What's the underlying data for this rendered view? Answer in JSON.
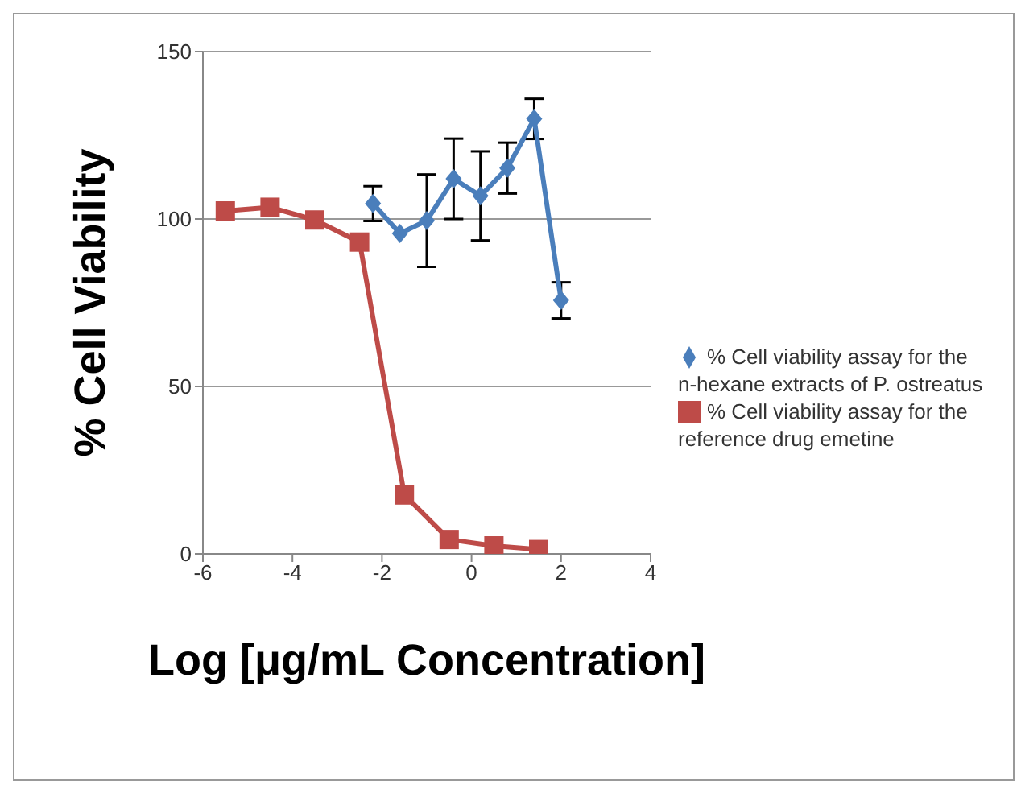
{
  "chart_data": {
    "type": "line",
    "xlabel": "Log [μg/mL Concentration]",
    "ylabel": "% Cell Viability",
    "xlim": [
      -6,
      4
    ],
    "xticks": [
      -6,
      -4,
      -2,
      0,
      2,
      4
    ],
    "ylim": [
      0,
      150
    ],
    "yticks": [
      0,
      50,
      100,
      150
    ],
    "grid": "y",
    "legend": "right",
    "line_style": "solid",
    "series": [
      {
        "name": "% Cell viability assay for the n-hexane extracts of P. ostreatus",
        "color": "#4a7ebb",
        "marker": "diamond",
        "x": [
          -2.2,
          -1.6,
          -1.0,
          -0.4,
          0.2,
          0.8,
          1.4,
          2.0
        ],
        "values": [
          104.6,
          95.7,
          99.5,
          112,
          106.9,
          115.2,
          129.9,
          75.7
        ],
        "errors": [
          5.2,
          null,
          13.8,
          12,
          13.3,
          7.6,
          6,
          5.4
        ]
      },
      {
        "name": "% Cell viability assay for the reference drug emetine",
        "color": "#be4b48",
        "marker": "square",
        "x": [
          -5.5,
          -4.5,
          -3.5,
          -2.5,
          -1.5,
          -0.5,
          0.5,
          1.5
        ],
        "values": [
          102.4,
          103.5,
          99.7,
          93.1,
          17.6,
          4.3,
          2.4,
          1.3
        ]
      }
    ]
  }
}
